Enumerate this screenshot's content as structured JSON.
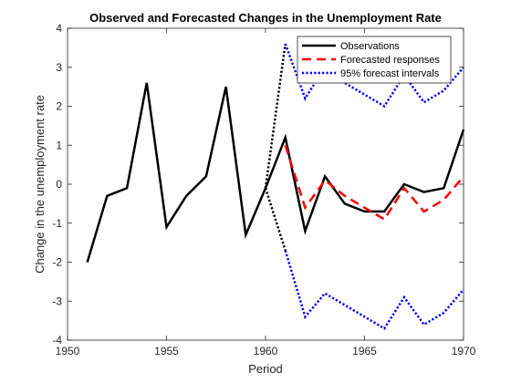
{
  "chart_data": {
    "type": "line",
    "title": "Observed and Forecasted Changes in the Unemployment Rate",
    "xlabel": "Period",
    "ylabel": "Change in the unemployment rate",
    "xlim": [
      1950,
      1970
    ],
    "ylim": [
      -4,
      4
    ],
    "xticks": [
      1950,
      1955,
      1960,
      1965,
      1970
    ],
    "yticks": [
      -4,
      -3,
      -2,
      -1,
      0,
      1,
      2,
      3,
      4
    ],
    "grid": false,
    "legend_position": "top-right",
    "series": [
      {
        "name": "Observations",
        "color": "#000000",
        "style": "solid",
        "x": [
          1951,
          1952,
          1953,
          1954,
          1955,
          1956,
          1957,
          1958,
          1959,
          1960,
          1961,
          1962,
          1963,
          1964,
          1965,
          1966,
          1967,
          1968,
          1969,
          1970
        ],
        "y": [
          -2.0,
          -0.3,
          -0.1,
          2.6,
          -1.1,
          -0.3,
          0.2,
          2.5,
          -1.3,
          -0.1,
          1.2,
          -1.2,
          0.2,
          -0.5,
          -0.7,
          -0.7,
          0.0,
          -0.2,
          -0.1,
          1.4
        ]
      },
      {
        "name": "Forecasted responses",
        "color": "#ff0000",
        "style": "dashed",
        "x": [
          1961,
          1962,
          1963,
          1964,
          1965,
          1966,
          1967,
          1968,
          1969,
          1970
        ],
        "y": [
          1.0,
          -0.6,
          0.1,
          -0.3,
          -0.6,
          -0.9,
          -0.1,
          -0.7,
          -0.4,
          0.2
        ]
      },
      {
        "name": "95% forecast intervals",
        "color": "#0000ff",
        "style": "dotted",
        "bands": [
          {
            "x": [
              1961,
              1962,
              1963,
              1964,
              1965,
              1966,
              1967,
              1968,
              1969,
              1970
            ],
            "y": [
              3.6,
              2.2,
              3.0,
              2.6,
              2.3,
              2.0,
              2.8,
              2.1,
              2.4,
              3.0
            ]
          },
          {
            "x": [
              1961,
              1962,
              1963,
              1964,
              1965,
              1966,
              1967,
              1968,
              1969,
              1970
            ],
            "y": [
              -1.7,
              -3.4,
              -2.8,
              -3.1,
              -3.4,
              -3.7,
              -2.9,
              -3.6,
              -3.3,
              -2.7
            ]
          }
        ]
      },
      {
        "name": "",
        "color": "#000000",
        "style": "dotted",
        "connectors": [
          {
            "x": [
              1960,
              1961
            ],
            "y": [
              -0.1,
              3.6
            ]
          },
          {
            "x": [
              1960,
              1961
            ],
            "y": [
              -0.1,
              -1.7
            ]
          }
        ]
      }
    ]
  }
}
